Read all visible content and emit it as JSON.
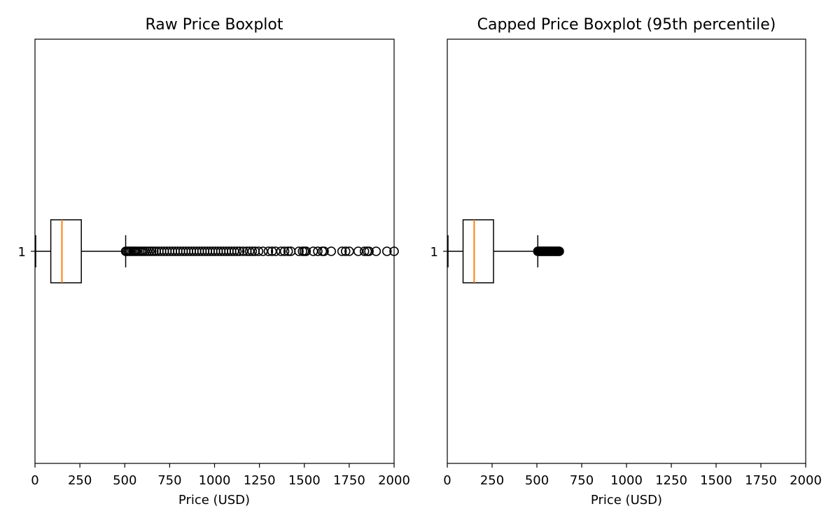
{
  "chart_data": [
    {
      "type": "boxplot",
      "orientation": "horizontal",
      "title": "Raw Price Boxplot",
      "xlabel": "Price (USD)",
      "ylabel": "",
      "xlim": [
        0,
        2000
      ],
      "xticks": [
        0,
        250,
        500,
        750,
        1000,
        1250,
        1500,
        1750,
        2000
      ],
      "xtick_labels": [
        "0",
        "250",
        "500",
        "750",
        "1000",
        "1250",
        "1500",
        "1750",
        "2000"
      ],
      "ytick_labels": [
        "1"
      ],
      "grid": false,
      "colors": {
        "box": "#000000",
        "median": "#ff7f0e",
        "flier": "#000000"
      },
      "boxes": [
        {
          "label": "1",
          "whisker_low": 0,
          "q1": 88,
          "median": 150,
          "q3": 258,
          "whisker_high": 505,
          "outliers": [
            505,
            512,
            520,
            528,
            536,
            545,
            553,
            561,
            570,
            580,
            590,
            600,
            612,
            625,
            638,
            650,
            662,
            675,
            690,
            705,
            720,
            735,
            750,
            765,
            780,
            795,
            810,
            825,
            840,
            855,
            870,
            885,
            900,
            915,
            930,
            945,
            960,
            975,
            990,
            1005,
            1020,
            1035,
            1050,
            1065,
            1080,
            1095,
            1110,
            1125,
            1140,
            1160,
            1180,
            1195,
            1210,
            1225,
            1245,
            1270,
            1300,
            1320,
            1340,
            1370,
            1390,
            1410,
            1425,
            1470,
            1490,
            1500,
            1510,
            1550,
            1575,
            1600,
            1610,
            1650,
            1710,
            1730,
            1750,
            1800,
            1835,
            1850,
            1860,
            1900,
            1960,
            2000
          ]
        }
      ]
    },
    {
      "type": "boxplot",
      "orientation": "horizontal",
      "title": "Capped Price Boxplot (95th percentile)",
      "xlabel": "Price (USD)",
      "ylabel": "",
      "xlim": [
        0,
        2000
      ],
      "xticks": [
        0,
        250,
        500,
        750,
        1000,
        1250,
        1500,
        1750,
        2000
      ],
      "xtick_labels": [
        "0",
        "250",
        "500",
        "750",
        "1000",
        "1250",
        "1500",
        "1750",
        "2000"
      ],
      "ytick_labels": [
        "1"
      ],
      "grid": false,
      "colors": {
        "box": "#000000",
        "median": "#ff7f0e",
        "flier": "#000000"
      },
      "boxes": [
        {
          "label": "1",
          "whisker_low": 0,
          "q1": 88,
          "median": 150,
          "q3": 258,
          "whisker_high": 505,
          "outliers": [
            505,
            510,
            515,
            520,
            525,
            530,
            535,
            540,
            545,
            550,
            555,
            560,
            565,
            570,
            575,
            580,
            585,
            590,
            595,
            600,
            605,
            610,
            615,
            620,
            625
          ]
        }
      ]
    }
  ]
}
